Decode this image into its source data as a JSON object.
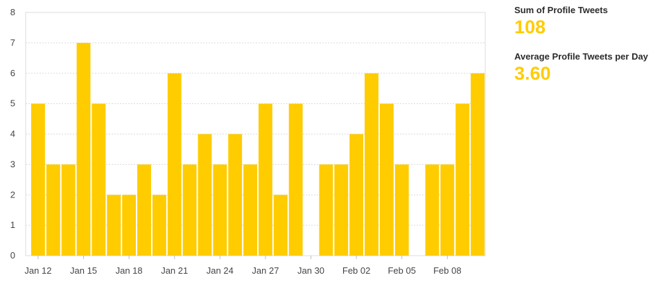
{
  "chart_data": {
    "type": "bar",
    "categories": [
      "Jan 12",
      "Jan 13",
      "Jan 14",
      "Jan 15",
      "Jan 16",
      "Jan 17",
      "Jan 18",
      "Jan 19",
      "Jan 20",
      "Jan 21",
      "Jan 22",
      "Jan 23",
      "Jan 24",
      "Jan 25",
      "Jan 26",
      "Jan 27",
      "Jan 28",
      "Jan 29",
      "Jan 30",
      "Jan 31",
      "Feb 01",
      "Feb 02",
      "Feb 03",
      "Feb 04",
      "Feb 05",
      "Feb 06",
      "Feb 07",
      "Feb 08",
      "Feb 09",
      "Feb 10"
    ],
    "values": [
      5,
      3,
      3,
      7,
      5,
      2,
      2,
      3,
      2,
      6,
      3,
      4,
      3,
      4,
      3,
      5,
      2,
      5,
      0,
      3,
      3,
      4,
      6,
      5,
      3,
      0,
      3,
      3,
      5,
      6
    ],
    "x_tick_labels": [
      "Jan 12",
      "Jan 15",
      "Jan 18",
      "Jan 21",
      "Jan 24",
      "Jan 27",
      "Jan 30",
      "Feb 02",
      "Feb 05",
      "Feb 08"
    ],
    "y_ticks": [
      0,
      1,
      2,
      3,
      4,
      5,
      6,
      7,
      8
    ],
    "ylim": [
      0,
      8
    ],
    "grid": true,
    "bar_color": "#FFCC00"
  },
  "stats": {
    "sum_label": "Sum of Profile Tweets",
    "sum_value": "108",
    "avg_label": "Average Profile Tweets per Day",
    "avg_value": "3.60"
  },
  "colors": {
    "accent": "#FFCC00",
    "grid": "#d9d9d9",
    "frame": "#dcdcdc"
  }
}
